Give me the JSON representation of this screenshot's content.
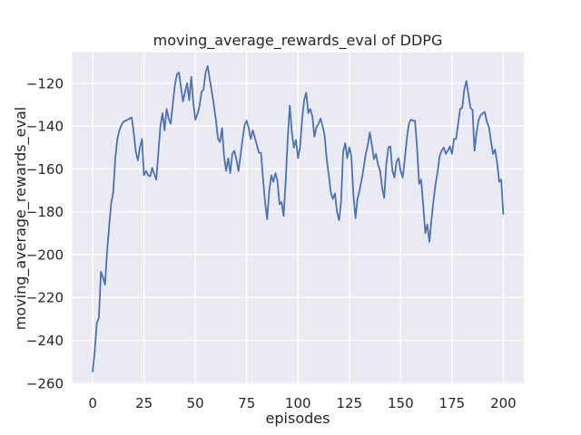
{
  "figure": {
    "background_color": "#ffffff"
  },
  "chart_data": {
    "type": "line",
    "title": "moving_average_rewards_eval of DDPG",
    "xlabel": "episodes",
    "ylabel": "moving_average_rewards_eval",
    "legend": "none",
    "grid": true,
    "xlim": [
      -10,
      210
    ],
    "ylim": [
      -260.5,
      -105.5
    ],
    "x_ticks": [
      0,
      25,
      50,
      75,
      100,
      125,
      150,
      175,
      200
    ],
    "y_ticks": [
      -120,
      -140,
      -160,
      -180,
      -200,
      -220,
      -240,
      -260
    ],
    "style": {
      "axes_background": "#eaeaf2",
      "grid_color": "#ffffff",
      "line_color": "#4c72b0",
      "text_color": "#262626",
      "line_width": 1.8
    },
    "series": [
      {
        "name": "moving_average_rewards_eval",
        "x_start": 0,
        "x_step": 1,
        "values": [
          -254.5,
          -245,
          -232,
          -229.5,
          -208,
          -210.5,
          -214,
          -199,
          -187,
          -176,
          -171,
          -155,
          -146,
          -142,
          -139.5,
          -138,
          -137.5,
          -137,
          -136.5,
          -136,
          -143,
          -152,
          -156,
          -150,
          -146,
          -163,
          -161,
          -163,
          -163.5,
          -159.5,
          -162.5,
          -165,
          -152,
          -140,
          -134,
          -142,
          -132,
          -136.5,
          -139,
          -130,
          -121,
          -116,
          -115,
          -122,
          -128.5,
          -124,
          -120,
          -128,
          -117,
          -129,
          -137,
          -134.5,
          -131,
          -124,
          -123,
          -115,
          -112,
          -118,
          -124,
          -130,
          -137,
          -146,
          -147.5,
          -141,
          -154,
          -161,
          -155,
          -162,
          -153,
          -151.5,
          -155.5,
          -161,
          -154,
          -146,
          -139.5,
          -137.5,
          -141,
          -146,
          -142,
          -145.5,
          -149,
          -152.5,
          -152.5,
          -165,
          -176,
          -183.5,
          -170,
          -163,
          -166,
          -162,
          -165.5,
          -176.5,
          -175.5,
          -182,
          -166,
          -146,
          -130.5,
          -143,
          -150,
          -146.5,
          -155,
          -150,
          -137,
          -128,
          -124.5,
          -134,
          -132,
          -135.5,
          -145,
          -140.5,
          -139,
          -136.5,
          -140,
          -144.5,
          -155.5,
          -163,
          -171,
          -174,
          -171.5,
          -180,
          -184,
          -175.5,
          -152,
          -148,
          -155,
          -150,
          -154,
          -172,
          -183,
          -174,
          -170,
          -165,
          -159.5,
          -153,
          -149,
          -143,
          -149,
          -155.5,
          -153,
          -158,
          -161,
          -169,
          -173.5,
          -158,
          -150,
          -149.5,
          -161,
          -164,
          -156.5,
          -155,
          -161,
          -164,
          -156,
          -146,
          -139,
          -137,
          -137.5,
          -137.5,
          -150,
          -167,
          -165,
          -177,
          -190,
          -186,
          -194,
          -184,
          -175,
          -167,
          -161.5,
          -154,
          -151.5,
          -150,
          -153,
          -151.5,
          -149.5,
          -153,
          -146,
          -146,
          -139,
          -132,
          -131.5,
          -123,
          -119,
          -125,
          -131.5,
          -132.5,
          -151.5,
          -143,
          -137,
          -135,
          -134,
          -133.5,
          -138,
          -140.5,
          -147,
          -153,
          -151,
          -157,
          -166,
          -165,
          -181
        ]
      }
    ]
  }
}
